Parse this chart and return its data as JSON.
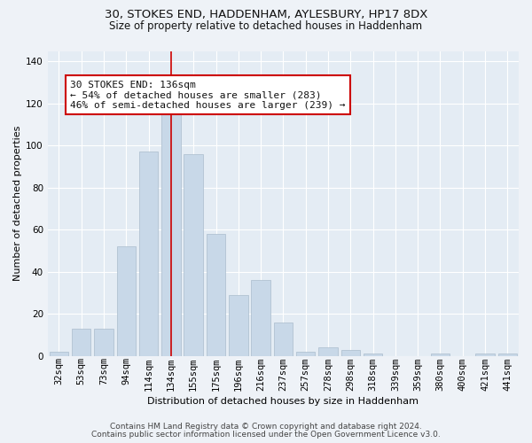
{
  "title1": "30, STOKES END, HADDENHAM, AYLESBURY, HP17 8DX",
  "title2": "Size of property relative to detached houses in Haddenham",
  "xlabel": "Distribution of detached houses by size in Haddenham",
  "ylabel": "Number of detached properties",
  "categories": [
    "32sqm",
    "53sqm",
    "73sqm",
    "94sqm",
    "114sqm",
    "134sqm",
    "155sqm",
    "175sqm",
    "196sqm",
    "216sqm",
    "237sqm",
    "257sqm",
    "278sqm",
    "298sqm",
    "318sqm",
    "339sqm",
    "359sqm",
    "380sqm",
    "400sqm",
    "421sqm",
    "441sqm"
  ],
  "values": [
    2,
    13,
    13,
    52,
    97,
    115,
    96,
    58,
    29,
    36,
    16,
    2,
    4,
    3,
    1,
    0,
    0,
    1,
    0,
    1,
    1
  ],
  "bar_color": "#c8d8e8",
  "bar_edge_color": "#aabccc",
  "vline_x": 5,
  "vline_color": "#cc0000",
  "annotation_line1": "30 STOKES END: 136sqm",
  "annotation_line2": "← 54% of detached houses are smaller (283)",
  "annotation_line3": "46% of semi-detached houses are larger (239) →",
  "annotation_box_facecolor": "#ffffff",
  "annotation_box_edgecolor": "#cc0000",
  "footer1": "Contains HM Land Registry data © Crown copyright and database right 2024.",
  "footer2": "Contains public sector information licensed under the Open Government Licence v3.0.",
  "fig_facecolor": "#eef2f7",
  "plot_facecolor": "#e4ecf4",
  "grid_color": "#ffffff",
  "ylim": [
    0,
    145
  ],
  "yticks": [
    0,
    20,
    40,
    60,
    80,
    100,
    120,
    140
  ],
  "title1_fontsize": 9.5,
  "title2_fontsize": 8.5,
  "ylabel_fontsize": 8,
  "xlabel_fontsize": 8,
  "tick_fontsize": 7.5,
  "annotation_fontsize": 8,
  "footer_fontsize": 6.5
}
